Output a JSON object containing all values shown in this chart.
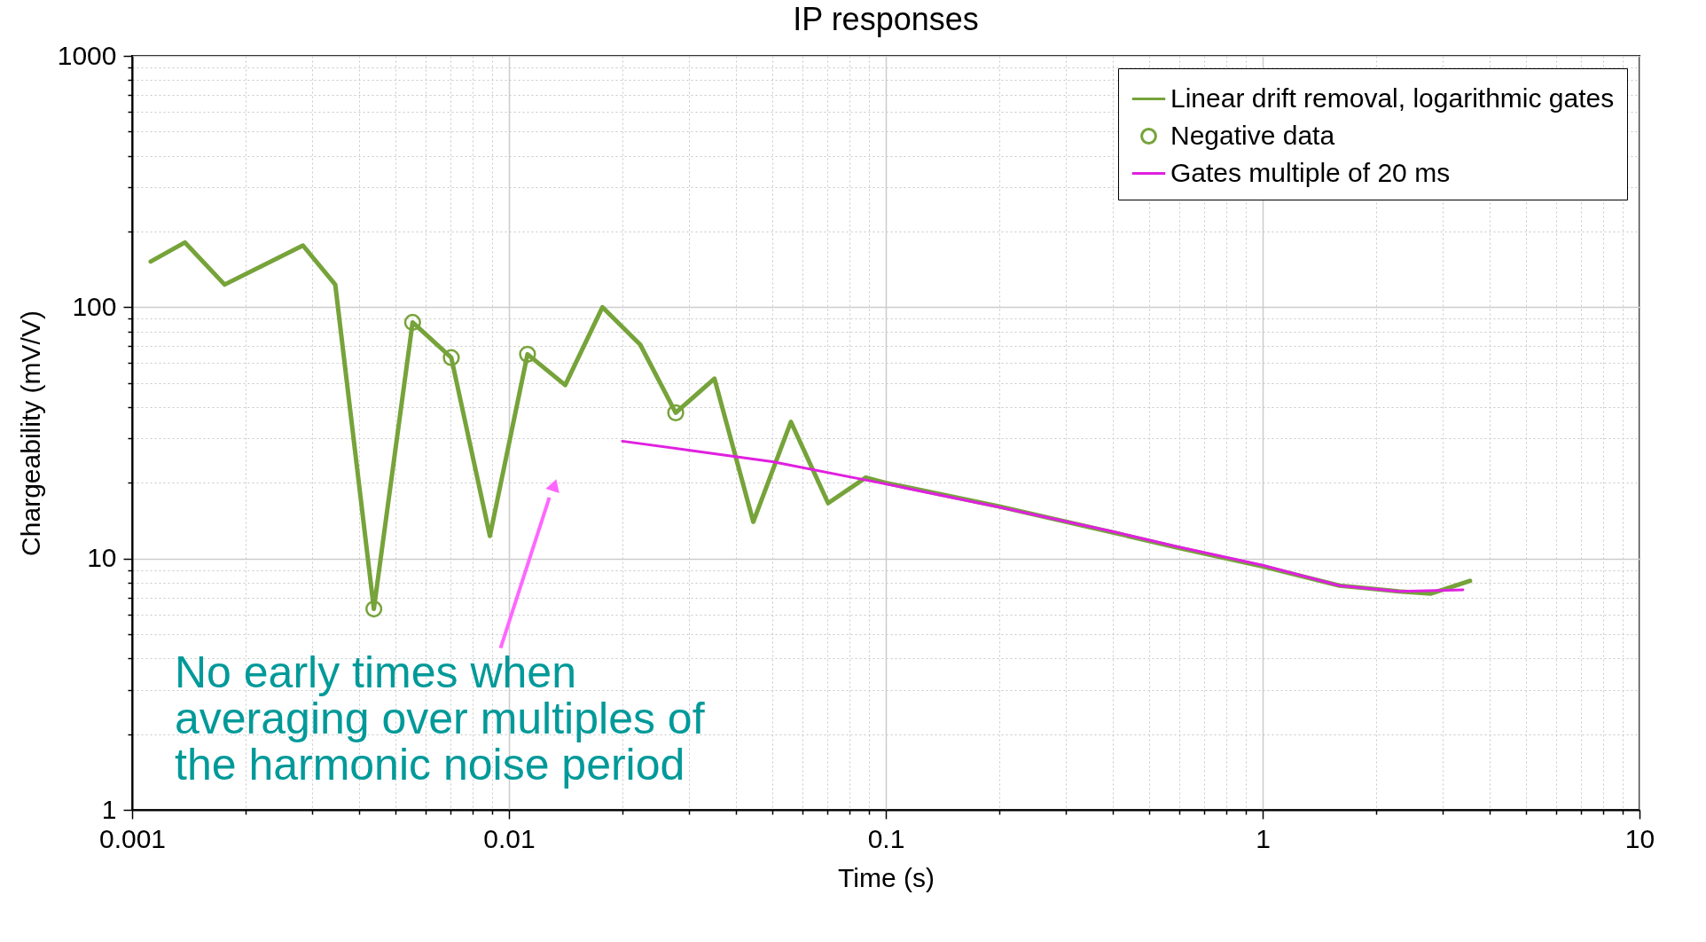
{
  "chart_data": {
    "type": "line",
    "title": "IP responses",
    "xlabel": "Time (s)",
    "ylabel": "Chargeability (mV/V)",
    "log": "xy",
    "xlim": [
      0.001,
      10
    ],
    "xticks": [
      0.001,
      0.01,
      0.1,
      1,
      10
    ],
    "ylim": [
      1,
      1000
    ],
    "yticks": [
      1,
      10,
      100,
      1000
    ],
    "grid": true,
    "legend": "top right",
    "series": [
      {
        "name": "Linear drift removal, logarithmic gates",
        "color": "#76a33a",
        "x": [
          0.00112,
          0.00138,
          0.00176,
          0.00284,
          0.00346,
          0.00438,
          0.00555,
          0.00703,
          0.0089,
          0.0112,
          0.0141,
          0.0177,
          0.0223,
          0.0277,
          0.0351,
          0.0445,
          0.056,
          0.0703,
          0.0885,
          0.1,
          0.2,
          0.4,
          0.6,
          1.0,
          1.6,
          2.3,
          2.8,
          3.55
        ],
        "values": [
          152,
          181,
          123,
          176,
          123,
          6.3,
          87,
          63,
          12.3,
          65,
          49,
          100,
          71,
          38,
          52,
          14,
          35,
          16.6,
          21,
          20,
          16.1,
          12.7,
          11,
          9.3,
          7.8,
          7.4,
          7.25,
          8.15
        ]
      },
      {
        "name": "Negative data",
        "type": "scatter",
        "marker": "circle",
        "color": "#76a33a",
        "x": [
          0.00438,
          0.00555,
          0.00703,
          0.0112,
          0.0277
        ],
        "values": [
          6.3,
          87,
          63,
          65,
          38
        ]
      },
      {
        "name": "Gates multiple of 20 ms",
        "color": "#e020e0",
        "x": [
          0.02,
          0.05,
          0.1,
          0.2,
          0.4,
          0.6,
          1.0,
          1.6,
          2.3,
          3.4
        ],
        "values": [
          29.3,
          24.3,
          19.8,
          16,
          12.8,
          11.1,
          9.4,
          7.8,
          7.4,
          7.5
        ]
      }
    ],
    "annotations": [
      "No early times when averaging over multiples of the harmonic noise period"
    ]
  }
}
